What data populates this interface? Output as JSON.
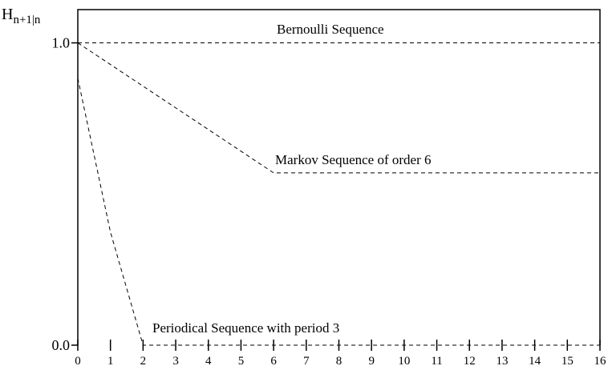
{
  "chart_data": {
    "type": "line",
    "ylabel": "H",
    "ylabel_sub": "n+1|n",
    "xlim": [
      0,
      16
    ],
    "xticks": [
      0,
      1,
      2,
      3,
      4,
      5,
      6,
      7,
      8,
      9,
      10,
      11,
      12,
      13,
      14,
      15,
      16
    ],
    "ylim": [
      0,
      1.11
    ],
    "yticks": [
      {
        "value": 0,
        "label": "0.0"
      },
      {
        "value": 1,
        "label": "1.0"
      }
    ],
    "series": [
      {
        "name": "Bernoulli Sequence",
        "color": "#000000",
        "x": [
          0,
          16
        ],
        "values": [
          1.0,
          1.0
        ]
      },
      {
        "name": "Markov Sequence of order 6",
        "color": "#000000",
        "x": [
          0,
          6,
          16
        ],
        "values": [
          1.0,
          0.57,
          0.57
        ]
      },
      {
        "name": "Periodical Sequence with period 3",
        "color": "#000000",
        "x": [
          0,
          1,
          2,
          16
        ],
        "values": [
          0.883,
          0.374,
          0,
          0
        ]
      }
    ]
  }
}
